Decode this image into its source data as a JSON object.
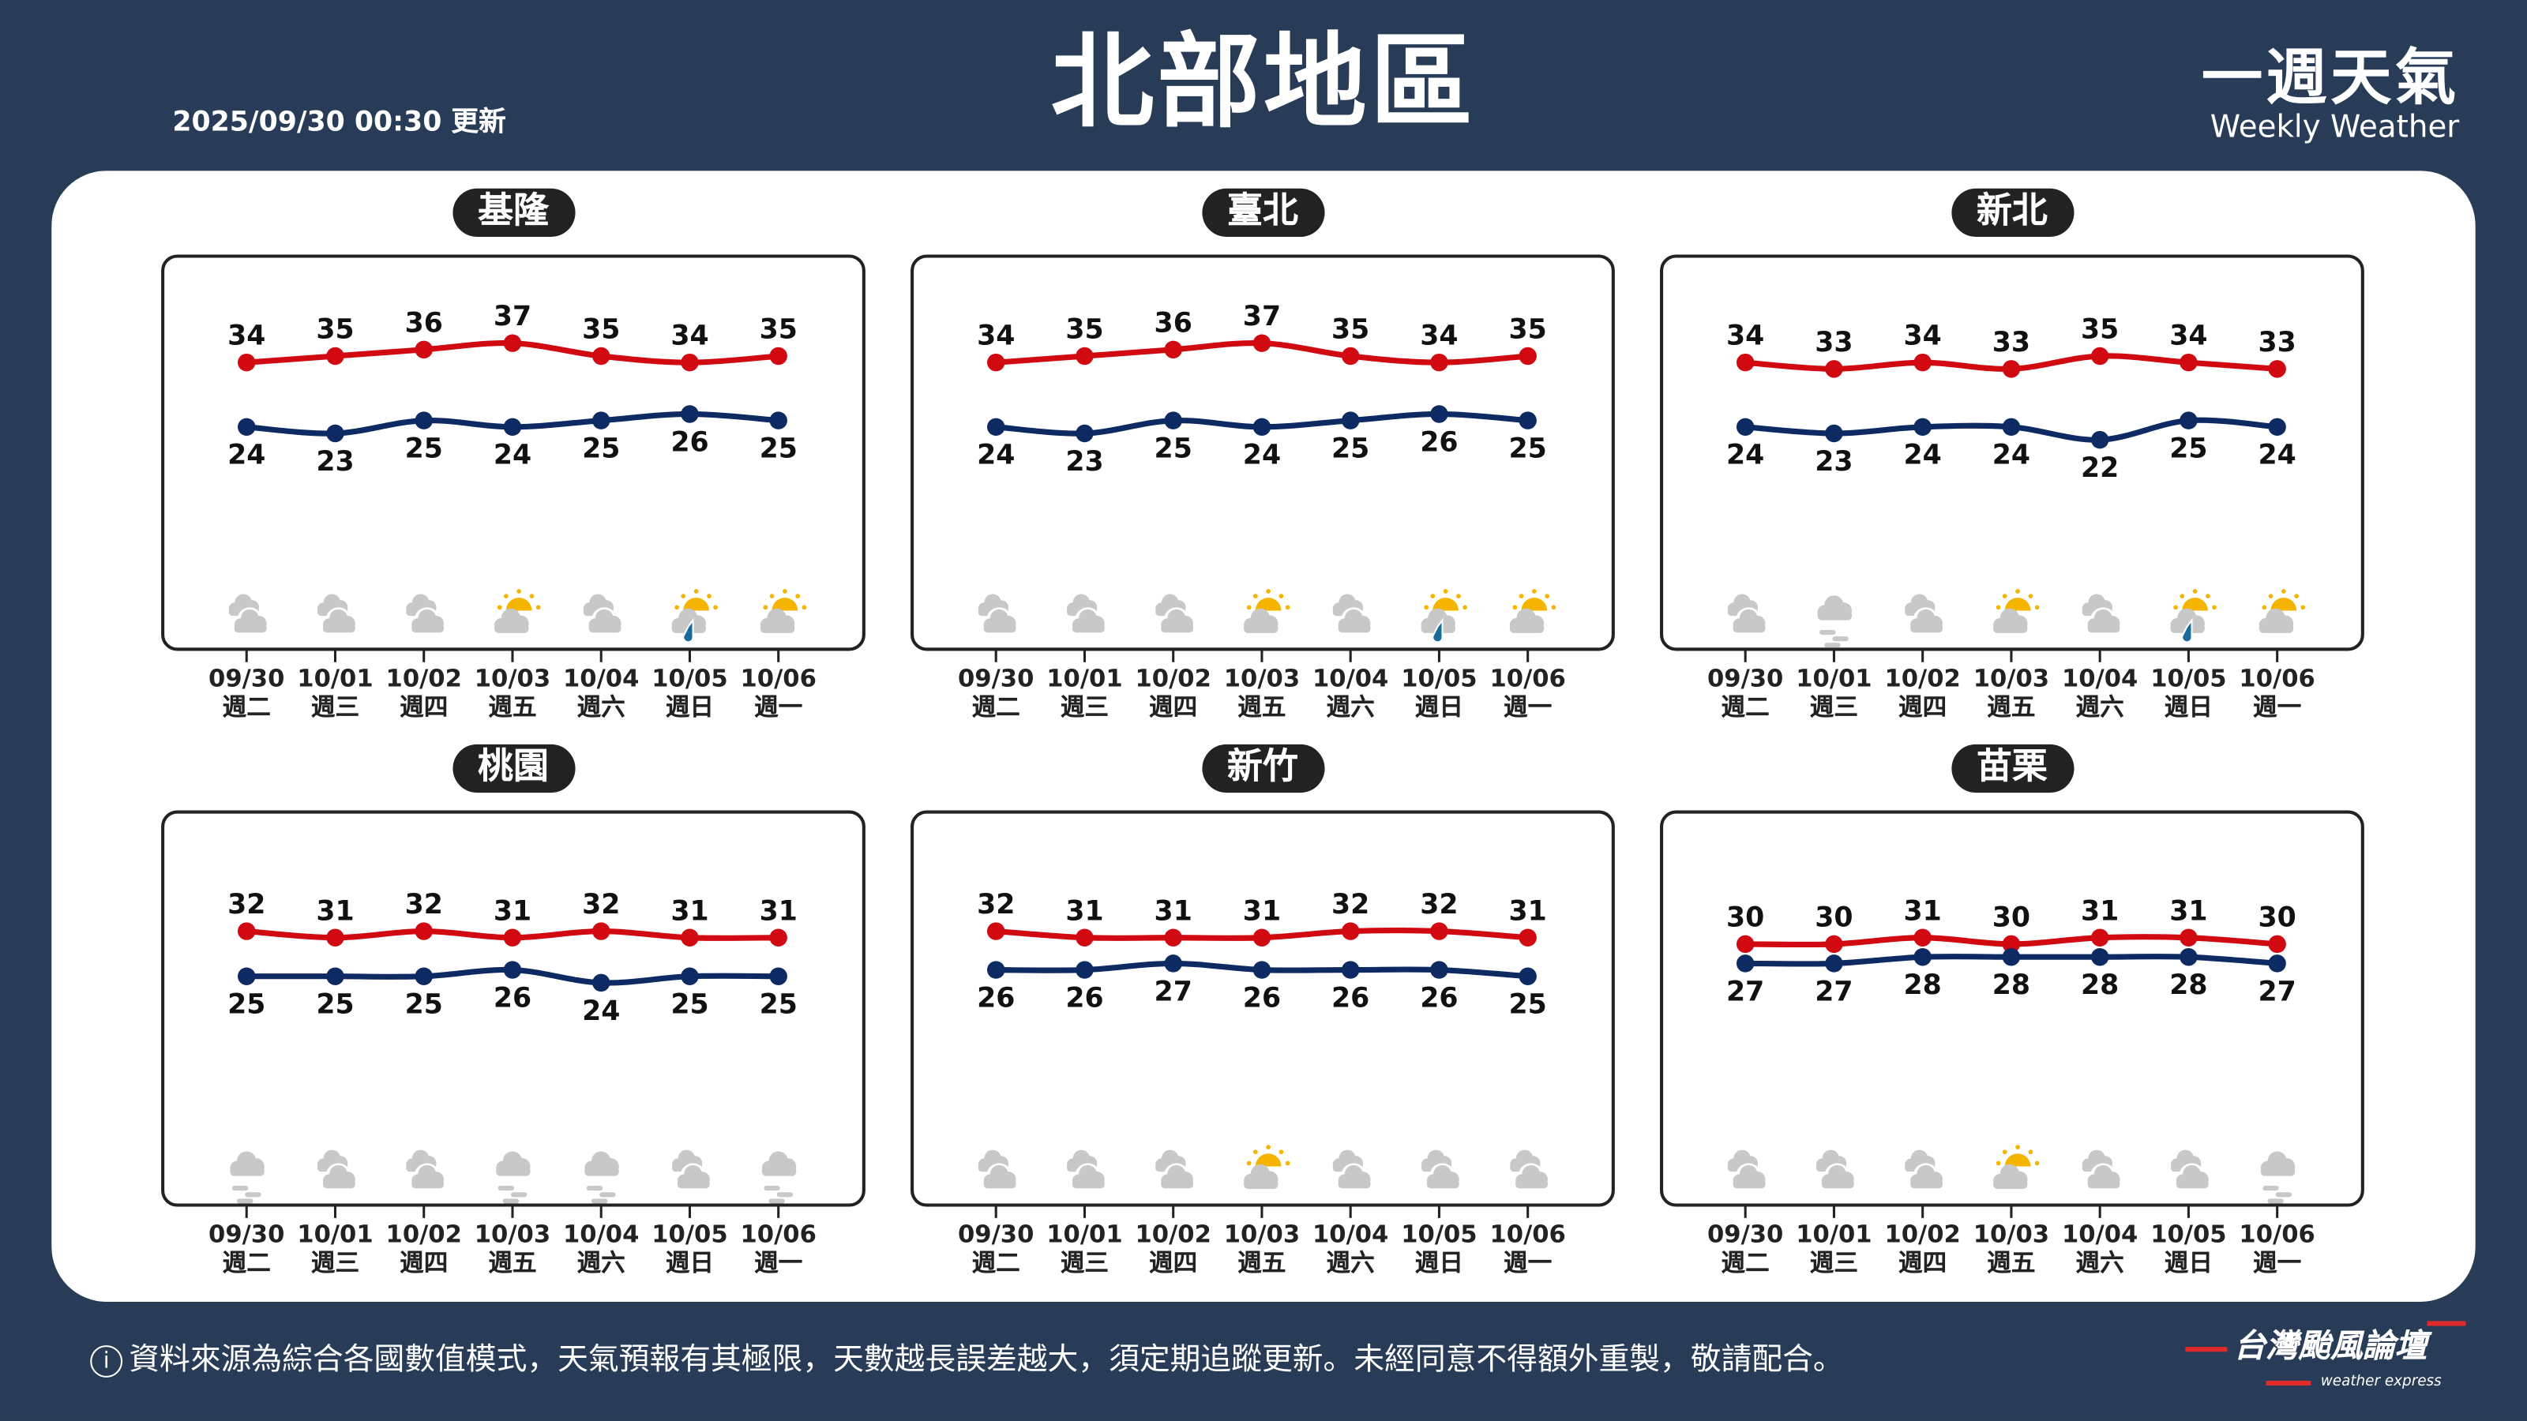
{
  "header": {
    "update_time": "2025/09/30 00:30 更新",
    "title": "北部地區",
    "brand_zh": "一週天氣",
    "brand_en": "Weekly Weather"
  },
  "footer": {
    "disclaimer": "資料來源為綜合各國數值模式，天氣預報有其極限，天數越長誤差越大，須定期追蹤更新。未經同意不得額外重製，敬請配合。",
    "info_icon": "i",
    "logo_zh": "台灣颱風論壇",
    "logo_en": "weather express"
  },
  "colors": {
    "background": "#293c57",
    "high": "#d10a11",
    "low": "#0d2a63",
    "cloud": "#c8c8c8",
    "sun": "#f5b400",
    "rain": "#1a6a9c"
  },
  "chart_data": [
    {
      "type": "line",
      "title": "基隆",
      "categories": [
        "09/30",
        "10/01",
        "10/02",
        "10/03",
        "10/04",
        "10/05",
        "10/06"
      ],
      "weekdays": [
        "週二",
        "週三",
        "週四",
        "週五",
        "週六",
        "週日",
        "週一"
      ],
      "series": [
        {
          "values": [
            34,
            35,
            36,
            37,
            35,
            34,
            35
          ],
          "color": "#d10a11"
        },
        {
          "values": [
            24,
            23,
            25,
            24,
            25,
            26,
            25
          ],
          "color": "#0d2a63"
        }
      ],
      "icons": [
        "cloudy",
        "cloudy",
        "cloudy",
        "partly-cloudy",
        "cloudy",
        "partly-cloudy-rain",
        "partly-cloudy"
      ]
    },
    {
      "type": "line",
      "title": "臺北",
      "categories": [
        "09/30",
        "10/01",
        "10/02",
        "10/03",
        "10/04",
        "10/05",
        "10/06"
      ],
      "weekdays": [
        "週二",
        "週三",
        "週四",
        "週五",
        "週六",
        "週日",
        "週一"
      ],
      "series": [
        {
          "values": [
            34,
            35,
            36,
            37,
            35,
            34,
            35
          ],
          "color": "#d10a11"
        },
        {
          "values": [
            24,
            23,
            25,
            24,
            25,
            26,
            25
          ],
          "color": "#0d2a63"
        }
      ],
      "icons": [
        "cloudy",
        "cloudy",
        "cloudy",
        "partly-cloudy",
        "cloudy",
        "partly-cloudy-rain",
        "partly-cloudy"
      ]
    },
    {
      "type": "line",
      "title": "新北",
      "categories": [
        "09/30",
        "10/01",
        "10/02",
        "10/03",
        "10/04",
        "10/05",
        "10/06"
      ],
      "weekdays": [
        "週二",
        "週三",
        "週四",
        "週五",
        "週六",
        "週日",
        "週一"
      ],
      "series": [
        {
          "values": [
            34,
            33,
            34,
            33,
            35,
            34,
            33
          ],
          "color": "#d10a11"
        },
        {
          "values": [
            24,
            23,
            24,
            24,
            22,
            25,
            24
          ],
          "color": "#0d2a63"
        }
      ],
      "icons": [
        "cloudy",
        "fog",
        "cloudy",
        "partly-cloudy",
        "cloudy",
        "partly-cloudy-rain",
        "partly-cloudy"
      ]
    },
    {
      "type": "line",
      "title": "桃園",
      "categories": [
        "09/30",
        "10/01",
        "10/02",
        "10/03",
        "10/04",
        "10/05",
        "10/06"
      ],
      "weekdays": [
        "週二",
        "週三",
        "週四",
        "週五",
        "週六",
        "週日",
        "週一"
      ],
      "series": [
        {
          "values": [
            32,
            31,
            32,
            31,
            32,
            31,
            31
          ],
          "color": "#d10a11"
        },
        {
          "values": [
            25,
            25,
            25,
            26,
            24,
            25,
            25
          ],
          "color": "#0d2a63"
        }
      ],
      "icons": [
        "fog",
        "cloudy",
        "cloudy",
        "fog",
        "fog",
        "cloudy",
        "fog"
      ]
    },
    {
      "type": "line",
      "title": "新竹",
      "categories": [
        "09/30",
        "10/01",
        "10/02",
        "10/03",
        "10/04",
        "10/05",
        "10/06"
      ],
      "weekdays": [
        "週二",
        "週三",
        "週四",
        "週五",
        "週六",
        "週日",
        "週一"
      ],
      "series": [
        {
          "values": [
            32,
            31,
            31,
            31,
            32,
            32,
            31
          ],
          "color": "#d10a11"
        },
        {
          "values": [
            26,
            26,
            27,
            26,
            26,
            26,
            25
          ],
          "color": "#0d2a63"
        }
      ],
      "icons": [
        "cloudy",
        "cloudy",
        "cloudy",
        "partly-cloudy",
        "cloudy",
        "cloudy",
        "cloudy"
      ]
    },
    {
      "type": "line",
      "title": "苗栗",
      "categories": [
        "09/30",
        "10/01",
        "10/02",
        "10/03",
        "10/04",
        "10/05",
        "10/06"
      ],
      "weekdays": [
        "週二",
        "週三",
        "週四",
        "週五",
        "週六",
        "週日",
        "週一"
      ],
      "series": [
        {
          "values": [
            30,
            30,
            31,
            30,
            31,
            31,
            30
          ],
          "color": "#d10a11"
        },
        {
          "values": [
            27,
            27,
            28,
            28,
            28,
            28,
            27
          ],
          "color": "#0d2a63"
        }
      ],
      "icons": [
        "cloudy",
        "cloudy",
        "cloudy",
        "partly-cloudy",
        "cloudy",
        "cloudy",
        "fog"
      ]
    }
  ]
}
